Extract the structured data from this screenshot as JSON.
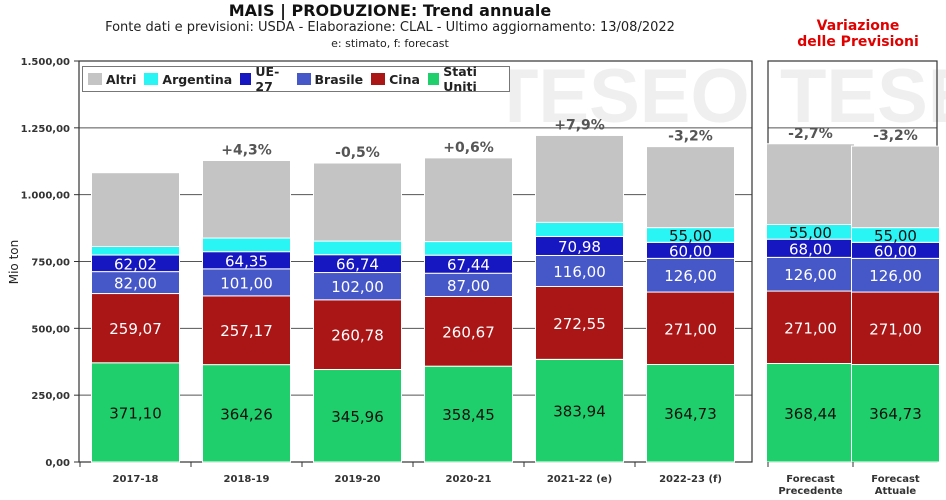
{
  "header": {
    "title": "MAIS | PRODUZIONE: Trend annuale",
    "subtitle": "Fonte dati e previsioni: USDA - Elaborazione: CLAL - Ultimo aggiornamento: 13/08/2022",
    "note": "e: stimato, f: forecast",
    "side_title_line1": "Variazione",
    "side_title_line2": "delle Previsioni"
  },
  "watermark": "TESEO",
  "chart_data": {
    "type": "bar",
    "stacked": true,
    "ylabel": "Mio ton",
    "ylim": [
      0,
      1500
    ],
    "yticks": [
      "0,00",
      "250,00",
      "500,00",
      "750,00",
      "1.000,00",
      "1.250,00",
      "1.500,00"
    ],
    "legend_position": "top-left",
    "categories": [
      "2017-18",
      "2018-19",
      "2019-20",
      "2020-21",
      "2021-22 (e)",
      "2022-23 (f)",
      "Forecast Precedente",
      "Forecast Attuale"
    ],
    "category_labels": [
      [
        "2017-18"
      ],
      [
        "2018-19"
      ],
      [
        "2019-20"
      ],
      [
        "2020-21"
      ],
      [
        "2021-22 (e)"
      ],
      [
        "2022-23 (f)"
      ],
      [
        "Forecast",
        "Precedente"
      ],
      [
        "Forecast",
        "Attuale"
      ]
    ],
    "series": [
      {
        "name": "Stati Uniti",
        "color": "#1fcf6b",
        "values": [
          371.1,
          364.26,
          345.96,
          358.45,
          383.94,
          364.73,
          368.44,
          364.73
        ],
        "labels": [
          "371,10",
          "364,26",
          "345,96",
          "358,45",
          "383,94",
          "364,73",
          "368,44",
          "364,73"
        ]
      },
      {
        "name": "Cina",
        "color": "#aa1616",
        "values": [
          259.07,
          257.17,
          260.78,
          260.67,
          272.55,
          271.0,
          271.0,
          271.0
        ],
        "labels": [
          "259,07",
          "257,17",
          "260,78",
          "260,67",
          "272,55",
          "271,00",
          "271,00",
          "271,00"
        ]
      },
      {
        "name": "Brasile",
        "color": "#4657c8",
        "values": [
          82.0,
          101.0,
          102.0,
          87.0,
          116.0,
          126.0,
          126.0,
          126.0
        ],
        "labels": [
          "82,00",
          "101,00",
          "102,00",
          "87,00",
          "116,00",
          "126,00",
          "126,00",
          "126,00"
        ]
      },
      {
        "name": "UE-27",
        "color": "#1717c2",
        "values": [
          62.02,
          64.35,
          66.74,
          67.44,
          70.98,
          60.0,
          68.0,
          60.0
        ],
        "labels": [
          "62,02",
          "64,35",
          "66,74",
          "67,44",
          "70,98",
          "60,00",
          "68,00",
          "60,00"
        ]
      },
      {
        "name": "Argentina",
        "color": "#2af5f5",
        "values": [
          32,
          51,
          51,
          51,
          53,
          55.0,
          55.0,
          55.0
        ],
        "labels": [
          "",
          "",
          "",
          "",
          "",
          "55,00",
          "55,00",
          "55,00"
        ]
      },
      {
        "name": "Altri",
        "color": "#c4c4c4",
        "values": [
          276,
          290,
          292,
          313,
          325,
          303,
          302,
          305
        ],
        "labels": [
          "",
          "",
          "",
          "",
          "",
          "",
          "",
          ""
        ]
      }
    ],
    "variation_labels": [
      "",
      "+4,3%",
      "-0,5%",
      "+0,6%",
      "+7,9%",
      "-3,2%",
      "-2,7%",
      "-3,2%"
    ]
  }
}
